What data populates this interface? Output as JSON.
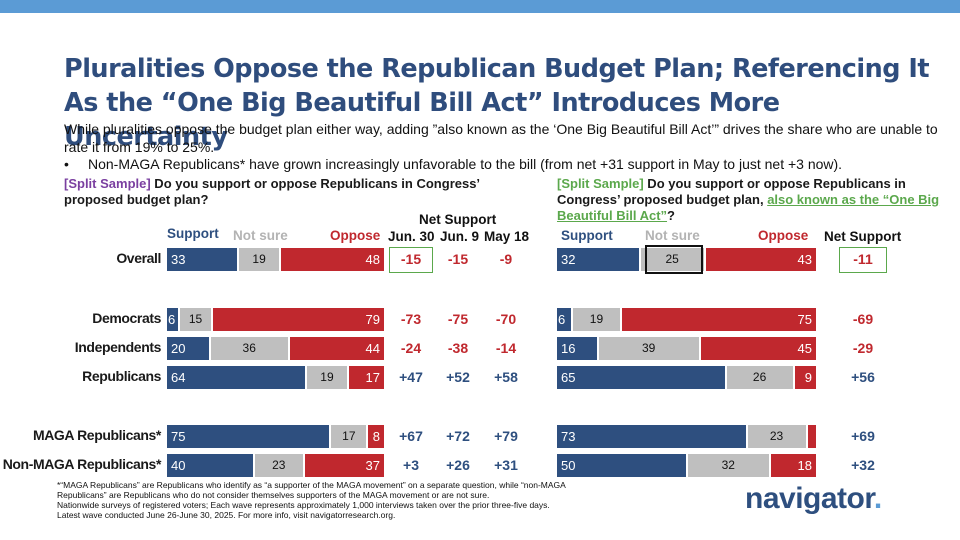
{
  "title": "Pluralities Oppose the Republican Budget Plan; Referencing It As the “One Big Beautiful Bill Act” Introduces More Uncertainty",
  "subtitle": "While pluralities oppose the budget plan either way, adding ”also known as the ‘One Big Beautiful Bill Act’” drives the share who are unable to rate it from 19% to 25%.",
  "bullet": "Non-MAGA Republicans* have grown increasingly unfavorable to the bill (from net +31 support in May to just net +3 now).",
  "bullet_marker": "•",
  "left_q": {
    "tag": "[Split Sample]",
    "text": " Do you support or oppose Republicans in Congress’ proposed budget plan?"
  },
  "right_q": {
    "tag": "[Split Sample]",
    "text": " Do you support or oppose Republicans in Congress’ proposed budget plan, ",
    "link": "also known as the “One Big Beautiful Bill Act”",
    "end": "?"
  },
  "legend": {
    "support": "Support",
    "not_sure": "Not sure",
    "oppose": "Oppose"
  },
  "net_support_header": "Net Support",
  "net_waves": [
    "Jun. 30",
    "Jun. 9",
    "May 18"
  ],
  "colors": {
    "support": "#2e4f7f",
    "not_sure": "#bfbfbf",
    "oppose": "#c0282e",
    "title": "#2f4d7d",
    "accent": "#5ba84c",
    "tag": "#7a3fa0"
  },
  "footnote": [
    "*“MAGA Republicans” are Republicans who identify as “a supporter of the MAGA movement” on a separate question, while “non-MAGA Republicans” are Republicans who do not consider themselves supporters of the MAGA movement or are not sure.",
    "Nationwide surveys of registered voters; Each wave represents approximately 1,000 interviews taken over the prior three-five days.",
    "Latest wave conducted June 26-June 30, 2025. For more info, visit navigatorresearch.org."
  ],
  "logo": "navigator",
  "logo_dot": ".",
  "chart_data": [
    {
      "type": "bar",
      "orientation": "horizontal-stacked",
      "title": "Do you support or oppose Republicans in Congress’ proposed budget plan?",
      "categories": [
        "Overall",
        "Democrats",
        "Independents",
        "Republicans",
        "MAGA Republicans*",
        "Non-MAGA Republicans*"
      ],
      "series": [
        {
          "name": "Support",
          "values": [
            33,
            6,
            20,
            64,
            75,
            40
          ]
        },
        {
          "name": "Not sure",
          "values": [
            19,
            15,
            36,
            19,
            17,
            23
          ]
        },
        {
          "name": "Oppose",
          "values": [
            48,
            79,
            44,
            17,
            8,
            37
          ]
        }
      ],
      "net_support": {
        "Jun. 30": [
          "-15",
          "-73",
          "-24",
          "+47",
          "+67",
          "+3"
        ],
        "Jun. 9": [
          "-15",
          "-75",
          "-38",
          "+52",
          "+72",
          "+26"
        ],
        "May 18": [
          "-9",
          "-70",
          "-14",
          "+58",
          "+79",
          "+31"
        ]
      }
    },
    {
      "type": "bar",
      "orientation": "horizontal-stacked",
      "title": "Do you support or oppose Republicans in Congress’ proposed budget plan, also known as the “One Big Beautiful Bill Act”?",
      "categories": [
        "Overall",
        "Democrats",
        "Independents",
        "Republicans",
        "MAGA Republicans*",
        "Non-MAGA Republicans*"
      ],
      "series": [
        {
          "name": "Support",
          "values": [
            32,
            6,
            16,
            65,
            73,
            50
          ]
        },
        {
          "name": "Not sure",
          "values": [
            25,
            19,
            39,
            26,
            23,
            32
          ]
        },
        {
          "name": "Oppose",
          "values": [
            43,
            75,
            45,
            9,
            4,
            18
          ]
        }
      ],
      "net_support": [
        "-11",
        "-69",
        "-29",
        "+56",
        "+69",
        "+32"
      ]
    }
  ]
}
